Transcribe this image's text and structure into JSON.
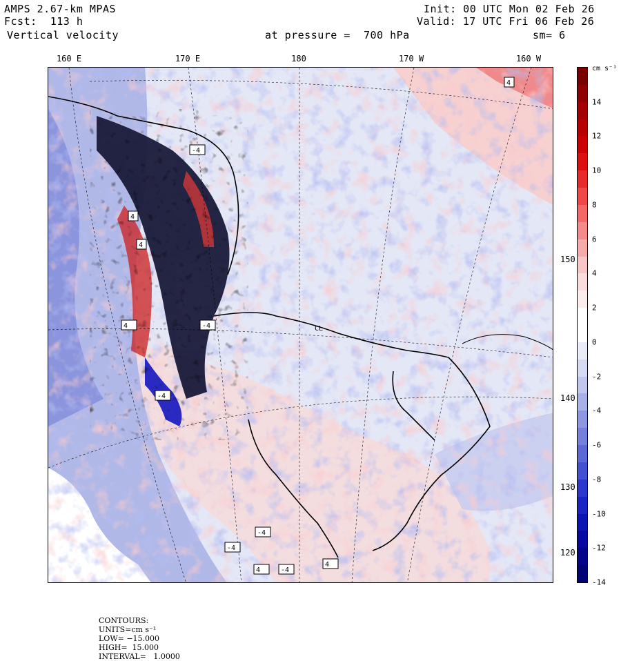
{
  "header": {
    "model": "AMPS 2.67-km MPAS",
    "forecast": "Fcst:  113 h",
    "field": "Vertical velocity",
    "level_text": "at pressure =  700 hPa",
    "init": "Init: 00 UTC Mon 02 Feb 26",
    "valid": "Valid: 17 UTC Fri 06 Feb 26",
    "smoothing": "sm= 6"
  },
  "map": {
    "lon_labels": [
      "160 E",
      "170 E",
      "180",
      "170 W",
      "160 W"
    ],
    "lat_labels": [
      "150 W",
      "140 W",
      "130 W",
      "120 W"
    ],
    "contour_box_labels": [
      "4",
      "-4",
      "4",
      "4",
      "4",
      "-4",
      "-4",
      "-4",
      "-4",
      "4",
      "-4",
      "4",
      "CL"
    ]
  },
  "colorbar": {
    "unit": "cm s⁻¹",
    "tick_labels": [
      "14",
      "12",
      "10",
      "8",
      "6",
      "4",
      "2",
      "0",
      "-2",
      "-4",
      "-6",
      "-8",
      "-10",
      "-12",
      "-14"
    ],
    "colors": [
      "#7a0000",
      "#8f0000",
      "#a50000",
      "#b80000",
      "#cc0000",
      "#dd1010",
      "#e82a2a",
      "#f04848",
      "#f46868",
      "#f58a8a",
      "#f6aaaa",
      "#f8c6c6",
      "#fadcdc",
      "#fcecec",
      "#ffffff",
      "#ffffff",
      "#eaecf8",
      "#d6daf2",
      "#c0c6ee",
      "#a8b0e8",
      "#8e98e2",
      "#7480dc",
      "#5c68d6",
      "#4450d2",
      "#2c38cc",
      "#1a24c4",
      "#0c14b4",
      "#0608a0",
      "#04068a",
      "#020476"
    ]
  },
  "footer": {
    "contours": "CONTOURS:",
    "units": "UNITS=cm s⁻¹",
    "low": "LOW= −15.000",
    "high": "HIGH=  15.000",
    "interval": "INTERVAL=   1.0000"
  }
}
